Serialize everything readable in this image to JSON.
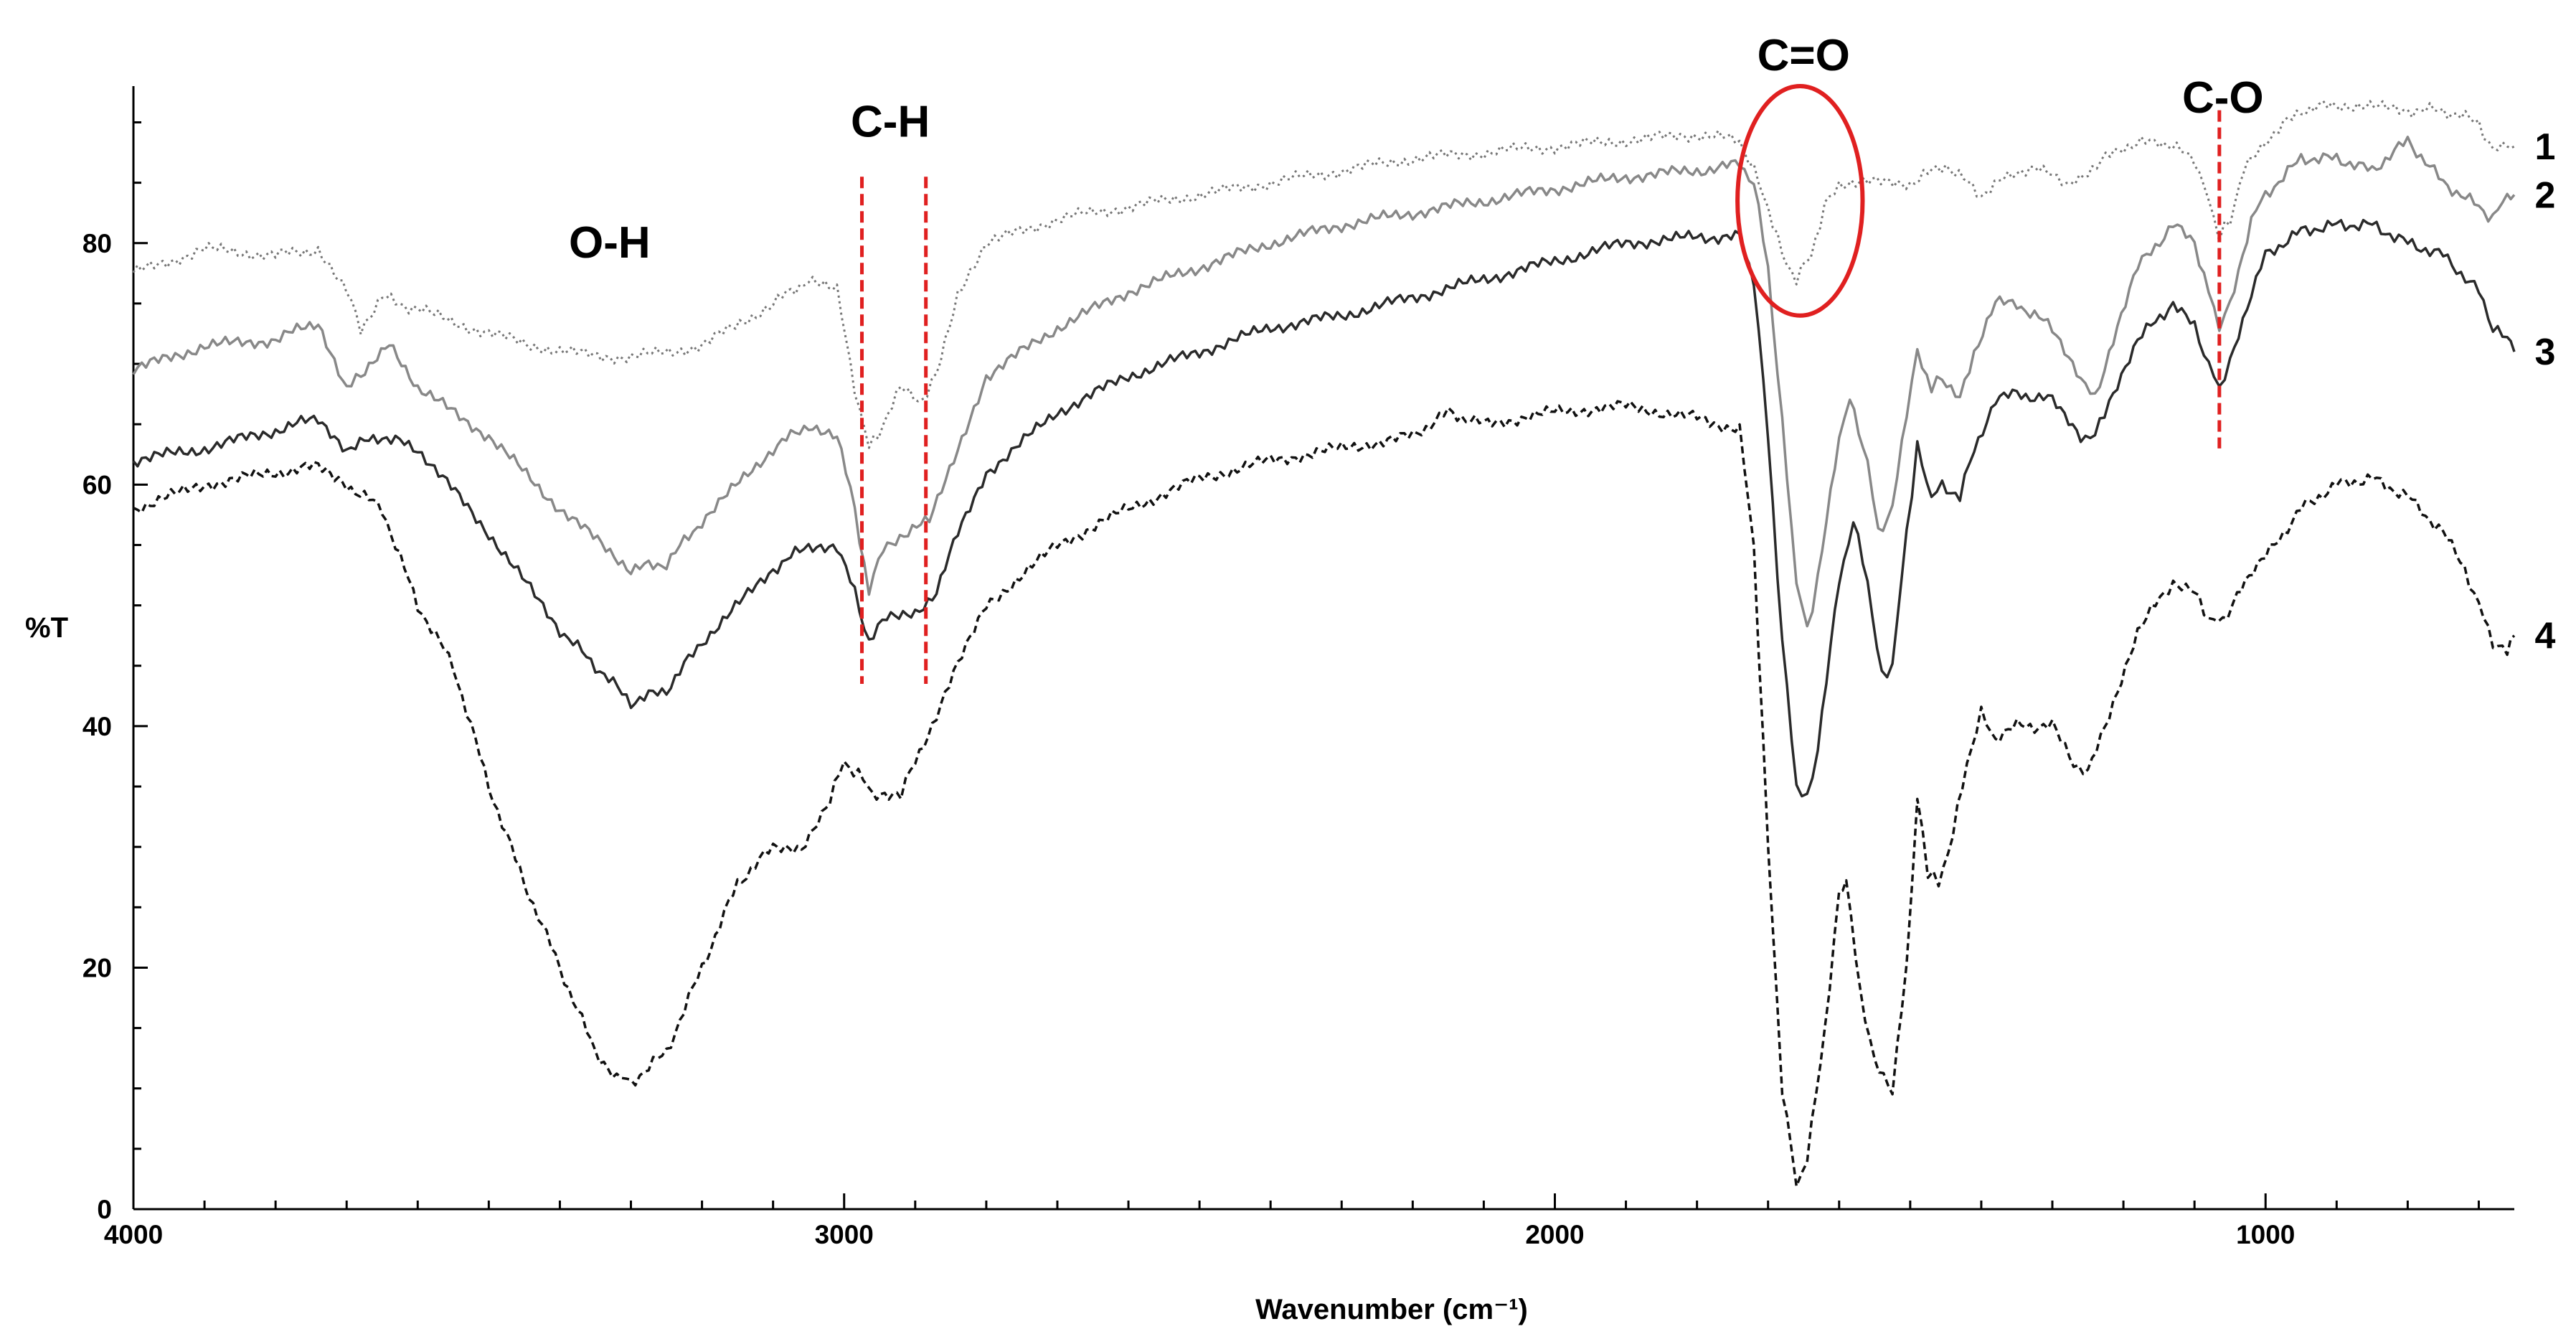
{
  "chart_data": {
    "type": "line",
    "title": "",
    "xlabel": "Wavenumber (cm⁻¹)",
    "ylabel": "%T",
    "xlim": [
      4000,
      650
    ],
    "ylim": [
      0,
      93
    ],
    "x_reversed": true,
    "x_ticks": [
      4000,
      3000,
      2000,
      1000
    ],
    "y_ticks": [
      0,
      20,
      40,
      60,
      80
    ],
    "grid": false,
    "legend": "inline-right",
    "series": [
      {
        "name": "1",
        "color": "#777777",
        "dash": "dotted",
        "points": [
          [
            4000,
            77.5
          ],
          [
            3900,
            79.5
          ],
          [
            3800,
            79
          ],
          [
            3740,
            79.5
          ],
          [
            3700,
            76
          ],
          [
            3680,
            73
          ],
          [
            3650,
            75.5
          ],
          [
            3600,
            74.5
          ],
          [
            3500,
            72.5
          ],
          [
            3400,
            71
          ],
          [
            3300,
            70.5
          ],
          [
            3200,
            71.5
          ],
          [
            3100,
            75
          ],
          [
            3050,
            77
          ],
          [
            3010,
            76
          ],
          [
            2985,
            68
          ],
          [
            2965,
            63
          ],
          [
            2945,
            65
          ],
          [
            2920,
            68
          ],
          [
            2890,
            67
          ],
          [
            2870,
            69
          ],
          [
            2840,
            76
          ],
          [
            2800,
            80
          ],
          [
            2700,
            82
          ],
          [
            2600,
            83
          ],
          [
            2500,
            84
          ],
          [
            2400,
            85
          ],
          [
            2300,
            86
          ],
          [
            2200,
            87
          ],
          [
            2100,
            87.5
          ],
          [
            2000,
            88
          ],
          [
            1900,
            88.5
          ],
          [
            1800,
            89
          ],
          [
            1740,
            88.5
          ],
          [
            1720,
            86
          ],
          [
            1700,
            83
          ],
          [
            1680,
            79
          ],
          [
            1660,
            77
          ],
          [
            1640,
            79
          ],
          [
            1620,
            83
          ],
          [
            1600,
            85
          ],
          [
            1500,
            85
          ],
          [
            1450,
            86.5
          ],
          [
            1400,
            84
          ],
          [
            1350,
            86
          ],
          [
            1300,
            86
          ],
          [
            1280,
            84.5
          ],
          [
            1250,
            86
          ],
          [
            1200,
            88
          ],
          [
            1150,
            88.5
          ],
          [
            1100,
            87
          ],
          [
            1080,
            83.5
          ],
          [
            1065,
            80.5
          ],
          [
            1050,
            82
          ],
          [
            1030,
            86
          ],
          [
            1000,
            88.5
          ],
          [
            950,
            91
          ],
          [
            900,
            91.5
          ],
          [
            800,
            91
          ],
          [
            750,
            91
          ],
          [
            700,
            90
          ],
          [
            680,
            87.5
          ],
          [
            660,
            88.5
          ],
          [
            650,
            88
          ]
        ]
      },
      {
        "name": "2",
        "color": "#888888",
        "dash": "solid",
        "points": [
          [
            4000,
            69.5
          ],
          [
            3900,
            71.5
          ],
          [
            3800,
            72
          ],
          [
            3740,
            73.5
          ],
          [
            3700,
            68
          ],
          [
            3680,
            69
          ],
          [
            3640,
            72
          ],
          [
            3600,
            68
          ],
          [
            3500,
            64
          ],
          [
            3400,
            58
          ],
          [
            3300,
            53
          ],
          [
            3250,
            53.5
          ],
          [
            3200,
            57
          ],
          [
            3100,
            63
          ],
          [
            3050,
            65
          ],
          [
            3010,
            64
          ],
          [
            2985,
            58
          ],
          [
            2965,
            51
          ],
          [
            2945,
            55
          ],
          [
            2910,
            56
          ],
          [
            2880,
            57
          ],
          [
            2840,
            63
          ],
          [
            2800,
            69
          ],
          [
            2700,
            73
          ],
          [
            2600,
            76
          ],
          [
            2500,
            78
          ],
          [
            2400,
            80
          ],
          [
            2300,
            81.5
          ],
          [
            2200,
            82.5
          ],
          [
            2100,
            83.5
          ],
          [
            2000,
            84.5
          ],
          [
            1900,
            85.5
          ],
          [
            1800,
            86
          ],
          [
            1740,
            86.5
          ],
          [
            1720,
            85
          ],
          [
            1700,
            78
          ],
          [
            1680,
            65
          ],
          [
            1660,
            52
          ],
          [
            1645,
            48
          ],
          [
            1630,
            52
          ],
          [
            1600,
            64
          ],
          [
            1585,
            67
          ],
          [
            1560,
            62
          ],
          [
            1545,
            56
          ],
          [
            1525,
            58
          ],
          [
            1505,
            66
          ],
          [
            1490,
            71
          ],
          [
            1470,
            68
          ],
          [
            1455,
            69
          ],
          [
            1430,
            67
          ],
          [
            1410,
            71
          ],
          [
            1380,
            75
          ],
          [
            1350,
            75
          ],
          [
            1300,
            73
          ],
          [
            1260,
            69
          ],
          [
            1240,
            67
          ],
          [
            1220,
            71
          ],
          [
            1180,
            78
          ],
          [
            1130,
            81.5
          ],
          [
            1100,
            80
          ],
          [
            1080,
            76
          ],
          [
            1065,
            73
          ],
          [
            1050,
            75
          ],
          [
            1020,
            82
          ],
          [
            1000,
            84
          ],
          [
            950,
            87
          ],
          [
            900,
            87
          ],
          [
            850,
            86
          ],
          [
            800,
            88.5
          ],
          [
            750,
            85
          ],
          [
            700,
            83
          ],
          [
            680,
            82
          ],
          [
            660,
            84
          ],
          [
            650,
            84
          ]
        ]
      },
      {
        "name": "3",
        "color": "#2a2a2a",
        "dash": "solid",
        "points": [
          [
            4000,
            62
          ],
          [
            3900,
            63
          ],
          [
            3800,
            64.5
          ],
          [
            3740,
            65.5
          ],
          [
            3700,
            63
          ],
          [
            3650,
            64
          ],
          [
            3600,
            63
          ],
          [
            3500,
            56
          ],
          [
            3400,
            48
          ],
          [
            3350,
            45
          ],
          [
            3300,
            42
          ],
          [
            3250,
            43
          ],
          [
            3200,
            47
          ],
          [
            3100,
            53
          ],
          [
            3050,
            55
          ],
          [
            3010,
            55
          ],
          [
            2985,
            51
          ],
          [
            2965,
            47
          ],
          [
            2940,
            49
          ],
          [
            2900,
            49.5
          ],
          [
            2870,
            51
          ],
          [
            2840,
            56
          ],
          [
            2800,
            61
          ],
          [
            2700,
            66
          ],
          [
            2600,
            69
          ],
          [
            2500,
            71
          ],
          [
            2400,
            73
          ],
          [
            2300,
            74
          ],
          [
            2200,
            75.5
          ],
          [
            2100,
            77
          ],
          [
            2000,
            78.5
          ],
          [
            1900,
            80
          ],
          [
            1800,
            80.5
          ],
          [
            1740,
            80.5
          ],
          [
            1720,
            77
          ],
          [
            1700,
            64
          ],
          [
            1680,
            47
          ],
          [
            1660,
            35
          ],
          [
            1645,
            34
          ],
          [
            1630,
            38
          ],
          [
            1600,
            52
          ],
          [
            1580,
            57
          ],
          [
            1560,
            52
          ],
          [
            1540,
            44
          ],
          [
            1525,
            45
          ],
          [
            1505,
            56
          ],
          [
            1490,
            63
          ],
          [
            1470,
            59
          ],
          [
            1455,
            60
          ],
          [
            1430,
            59
          ],
          [
            1410,
            63
          ],
          [
            1380,
            67
          ],
          [
            1350,
            67.5
          ],
          [
            1300,
            67
          ],
          [
            1260,
            64
          ],
          [
            1240,
            64
          ],
          [
            1220,
            67
          ],
          [
            1180,
            72
          ],
          [
            1130,
            75
          ],
          [
            1100,
            73
          ],
          [
            1080,
            70
          ],
          [
            1065,
            68
          ],
          [
            1050,
            70
          ],
          [
            1020,
            76
          ],
          [
            1000,
            79
          ],
          [
            950,
            81
          ],
          [
            900,
            81.5
          ],
          [
            850,
            81.5
          ],
          [
            800,
            80
          ],
          [
            750,
            79
          ],
          [
            700,
            76
          ],
          [
            680,
            73
          ],
          [
            660,
            72
          ],
          [
            650,
            71
          ]
        ]
      },
      {
        "name": "4",
        "color": "#111111",
        "dash": "dashed",
        "points": [
          [
            4000,
            58
          ],
          [
            3900,
            60
          ],
          [
            3800,
            61
          ],
          [
            3740,
            61.5
          ],
          [
            3700,
            60
          ],
          [
            3650,
            58
          ],
          [
            3600,
            50
          ],
          [
            3550,
            45
          ],
          [
            3500,
            35
          ],
          [
            3450,
            27
          ],
          [
            3400,
            20
          ],
          [
            3350,
            13
          ],
          [
            3320,
            11
          ],
          [
            3300,
            10.5
          ],
          [
            3250,
            13
          ],
          [
            3200,
            20
          ],
          [
            3150,
            27
          ],
          [
            3100,
            30
          ],
          [
            3060,
            30
          ],
          [
            3020,
            34
          ],
          [
            3000,
            37
          ],
          [
            2980,
            36
          ],
          [
            2960,
            34.5
          ],
          [
            2920,
            34.5
          ],
          [
            2900,
            37
          ],
          [
            2870,
            41
          ],
          [
            2840,
            45
          ],
          [
            2800,
            50
          ],
          [
            2700,
            55
          ],
          [
            2600,
            58
          ],
          [
            2500,
            60.5
          ],
          [
            2400,
            62
          ],
          [
            2300,
            63
          ],
          [
            2200,
            64
          ],
          [
            2150,
            66
          ],
          [
            2100,
            65
          ],
          [
            2000,
            66
          ],
          [
            1900,
            66.5
          ],
          [
            1800,
            65.5
          ],
          [
            1740,
            64.5
          ],
          [
            1720,
            55
          ],
          [
            1700,
            30
          ],
          [
            1680,
            10
          ],
          [
            1660,
            2
          ],
          [
            1645,
            4
          ],
          [
            1620,
            15
          ],
          [
            1600,
            26
          ],
          [
            1590,
            27
          ],
          [
            1570,
            18
          ],
          [
            1550,
            12
          ],
          [
            1525,
            10
          ],
          [
            1505,
            20
          ],
          [
            1490,
            34
          ],
          [
            1475,
            28
          ],
          [
            1460,
            27
          ],
          [
            1440,
            31
          ],
          [
            1420,
            37
          ],
          [
            1400,
            41
          ],
          [
            1380,
            39
          ],
          [
            1350,
            40
          ],
          [
            1300,
            40
          ],
          [
            1270,
            37
          ],
          [
            1250,
            36
          ],
          [
            1220,
            41
          ],
          [
            1180,
            48
          ],
          [
            1130,
            52
          ],
          [
            1100,
            51
          ],
          [
            1080,
            49
          ],
          [
            1060,
            48.5
          ],
          [
            1040,
            51
          ],
          [
            1000,
            54
          ],
          [
            950,
            58
          ],
          [
            900,
            60
          ],
          [
            850,
            60.5
          ],
          [
            800,
            59
          ],
          [
            750,
            56
          ],
          [
            720,
            53
          ],
          [
            700,
            50
          ],
          [
            680,
            47
          ],
          [
            660,
            46
          ],
          [
            650,
            47.5
          ]
        ]
      }
    ],
    "annotations": {
      "bands": [
        {
          "label": "O-H",
          "x": 3330,
          "y": 80
        },
        {
          "label": "C-H",
          "x": 2935,
          "y": 90
        },
        {
          "label": "C=O",
          "x": 1650,
          "y": 95.5
        },
        {
          "label": "C-O",
          "x": 1060,
          "y": 92
        }
      ],
      "markers": [
        {
          "x": 2975,
          "y_from": 43.5,
          "y_to": 85.5,
          "color": "#e02020"
        },
        {
          "x": 2885,
          "y_from": 43.5,
          "y_to": 85.5,
          "color": "#e02020"
        },
        {
          "x": 1065,
          "y_from": 63,
          "y_to": 91,
          "color": "#e02020"
        }
      ],
      "highlight": {
        "x_center": 1655,
        "y_center": 83.5,
        "x_halfwidth": 88,
        "y_halfwidth": 9.5,
        "color": "#e02020"
      }
    }
  }
}
